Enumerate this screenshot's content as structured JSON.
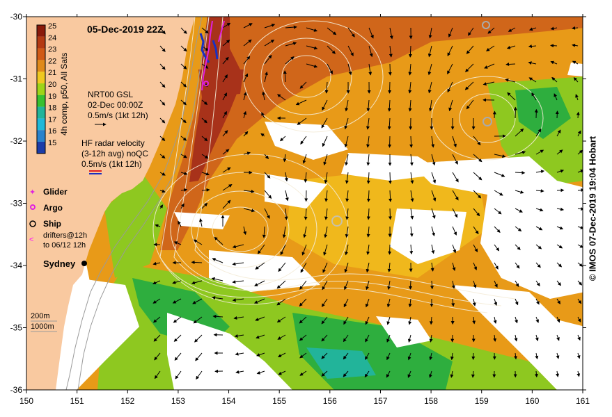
{
  "map": {
    "title": "05-Dec-2019 22Z",
    "colorbar": {
      "label": "4h comp, p50, All Sats",
      "ticks": [
        25,
        24,
        23,
        22,
        21,
        20,
        19,
        18,
        17,
        16,
        15
      ],
      "colors": {
        "25": "#8a1a0a",
        "24": "#b43a12",
        "23": "#d05a16",
        "22": "#e08a1a",
        "21": "#efc820",
        "20": "#9ed418",
        "19": "#38c030",
        "18": "#22b49a",
        "17": "#20b8d8",
        "16": "#2a82cc",
        "15": "#1c3ca8"
      }
    },
    "legend_gsl": {
      "line1": "NRT00 GSL",
      "line2": "02-Dec 00:00Z",
      "line3": "0.5m/s (1kt 12h)"
    },
    "legend_hf": {
      "line1": "HF radar velocity",
      "line2": "(3-12h avg) noQC",
      "line3": "0.5m/s (1kt 12h)"
    },
    "markers": {
      "glider": "Glider",
      "argo": "Argo",
      "ship": "Ship",
      "drifters1": "drifters@12h",
      "drifters2": "to 06/12 12h"
    },
    "city": "Sydney",
    "isobaths": {
      "a": "200m",
      "b": "1000m"
    },
    "x_ticks": [
      "150",
      "151",
      "152",
      "153",
      "154",
      "155",
      "156",
      "157",
      "158",
      "159",
      "160",
      "161"
    ],
    "y_ticks": [
      "-30",
      "-31",
      "-32",
      "-33",
      "-34",
      "-35",
      "-36"
    ],
    "credit": "© IMOS 07-Dec-2019 19:04 Hobart",
    "palette": {
      "land": "#f9c9a0",
      "cloud": "#ffffff",
      "sst_main": "#e89a18",
      "sst_warm": "#d0661a",
      "sst_hot": "#a8321a",
      "sst_cool": "#8ec820",
      "sst_cold": "#2eae3e",
      "contour": "#f4ecd8",
      "glider": "#e020e0",
      "drifter": "#ff00ff",
      "eac_blue": "#1a30c0"
    }
  }
}
